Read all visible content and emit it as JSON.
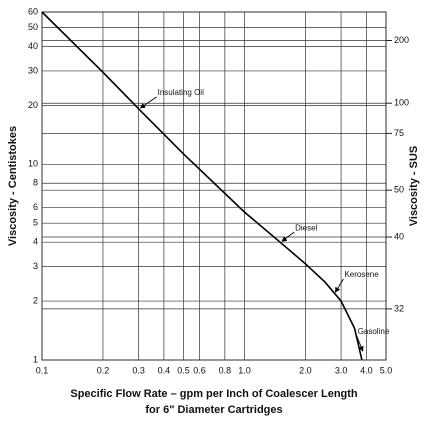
{
  "chart_data": {
    "type": "line",
    "log_x": true,
    "log_y": true,
    "grid": true,
    "color": "#000000",
    "x_label": [
      "Specific Flow Rate – gpm per Inch of Coalescer Length",
      "for 6\" Diameter Cartridges"
    ],
    "y_label": "Viscosity - Centistokes",
    "y2_label": "Viscosity - SUS",
    "y2scale": "saybolt",
    "x": [
      0.1,
      0.2,
      0.3,
      0.5,
      1.0,
      1.5,
      2.0,
      2.5,
      3.0,
      3.5,
      3.8
    ],
    "values": [
      60,
      29.5,
      19.2,
      11.3,
      5.7,
      4.0,
      3.1,
      2.5,
      2.0,
      1.45,
      1.0
    ],
    "xlim": [
      0.1,
      5.0
    ],
    "ylim": [
      1,
      60
    ],
    "xticks": [
      0.1,
      0.2,
      0.3,
      0.4,
      0.5,
      0.6,
      0.8,
      {
        "value": 1,
        "label": "1.0"
      },
      {
        "value": 2,
        "label": "2.0"
      },
      {
        "value": 3,
        "label": "3.0"
      },
      {
        "value": 4,
        "label": "4.0"
      },
      {
        "value": 5,
        "label": "5.0"
      }
    ],
    "yticks": [
      60,
      50,
      40,
      30,
      20,
      10,
      8,
      6,
      5,
      4,
      3,
      2,
      1
    ],
    "y2ticks": [
      200,
      100,
      75,
      50,
      40,
      32
    ],
    "annotations": [
      {
        "text": "Insulating Oil",
        "x": 0.3,
        "y": 19.2
      },
      {
        "text": "Diesel",
        "x": 1.5,
        "y": 4.0
      },
      {
        "text": "Kerosene",
        "x": 2.75,
        "y": 2.2
      },
      {
        "text": "Gasoline",
        "x": 3.75,
        "y": 1.1
      }
    ]
  }
}
